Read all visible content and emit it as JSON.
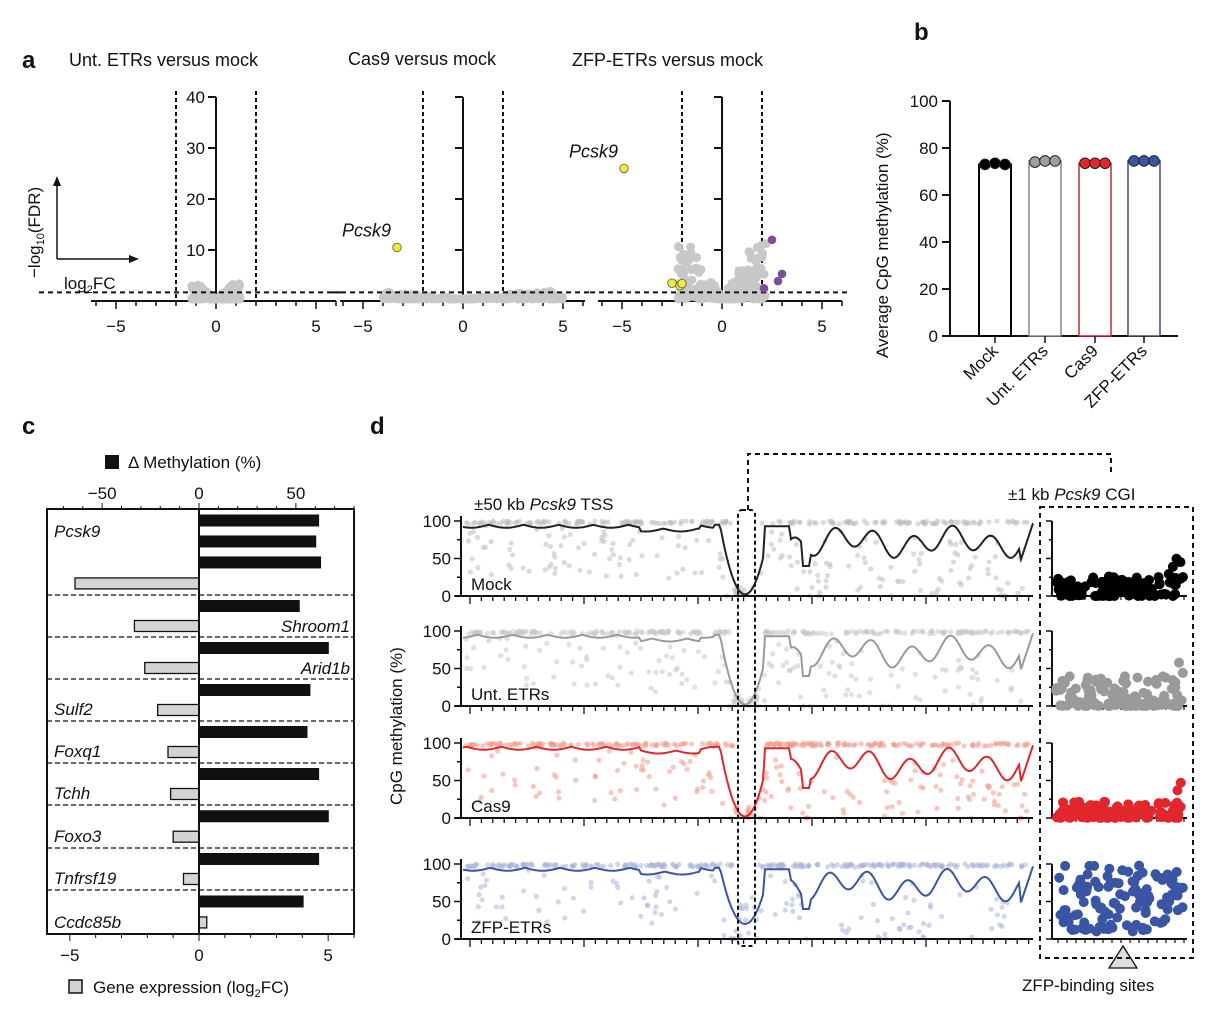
{
  "chart_data": [
    {
      "id": "a",
      "type": "scatter",
      "panel_label": "a",
      "ylabel": "−log10(FDR)",
      "xlabel": "log2FC",
      "ylim": [
        0,
        40
      ],
      "xlim": [
        -6,
        6
      ],
      "yticks": [
        "10",
        "20",
        "30",
        "40"
      ],
      "xticks": [
        "−5",
        "0",
        "5"
      ],
      "fc_threshold": 2,
      "fdr_threshold": 1.3,
      "colors": {
        "background": "#c8c8c8",
        "down": "#f2ea3a",
        "up": "#7b4f9c"
      },
      "subplots": [
        {
          "title": "Unt. ETRs versus mock",
          "highlighted": [],
          "background_spread": {
            "x": [
              -1.2,
              1.2
            ],
            "ymax": 3
          }
        },
        {
          "title": "Cas9 versus mock",
          "highlighted": [
            {
              "label": "Pcsk9",
              "x": -3.3,
              "y": 10.5,
              "group": "down"
            }
          ],
          "background_spread": {
            "x": [
              -4,
              5
            ],
            "ymax": 1.5
          }
        },
        {
          "title": "ZFP-ETRs versus mock",
          "highlighted": [
            {
              "label": "Pcsk9",
              "x": -4.9,
              "y": 26,
              "group": "down"
            },
            {
              "label": "",
              "x": -2.5,
              "y": 3.5,
              "group": "down"
            },
            {
              "label": "",
              "x": -2.1,
              "y": 3,
              "group": "down"
            },
            {
              "label": "",
              "x": -2.0,
              "y": 3.4,
              "group": "down"
            },
            {
              "label": "",
              "x": 2.5,
              "y": 12,
              "group": "up"
            },
            {
              "label": "",
              "x": 3.0,
              "y": 5.3,
              "group": "up"
            },
            {
              "label": "",
              "x": 2.8,
              "y": 3.9,
              "group": "up"
            },
            {
              "label": "",
              "x": 2.1,
              "y": 2.5,
              "group": "up"
            }
          ],
          "background_spread": {
            "x": [
              -2.2,
              2.2
            ],
            "ymax": 11
          }
        }
      ]
    },
    {
      "id": "b",
      "type": "bar",
      "panel_label": "b",
      "ylabel": "Average CpG methylation (%)",
      "ylim": [
        0,
        100
      ],
      "yticks": [
        "0",
        "20",
        "40",
        "60",
        "80",
        "100"
      ],
      "categories": [
        "Mock",
        "Unt. ETRs",
        "Cas9",
        "ZFP-ETRs"
      ],
      "values": [
        73,
        74.5,
        73.5,
        74.5
      ],
      "replicates": [
        [
          73,
          73.5,
          73
        ],
        [
          74,
          74.5,
          74.5
        ],
        [
          73.5,
          73.5,
          73.5
        ],
        [
          74.5,
          74.5,
          74.5
        ]
      ],
      "colors": [
        "#000000",
        "#a0a0a0",
        "#e3262b",
        "#3a55a4"
      ],
      "bar_edge_colors": [
        "#000000",
        "#888888",
        "#c0283a",
        "#3f4f6e"
      ]
    },
    {
      "id": "c",
      "type": "bar",
      "panel_label": "c",
      "orientation": "horizontal",
      "top_axis_label": "Δ Methylation (%)",
      "top_axis_ticks": [
        "−50",
        "0",
        "50"
      ],
      "top_axis_range": [
        -80,
        80
      ],
      "bottom_axis_label": "Gene expression (log2FC)",
      "bottom_axis_ticks": [
        "−5",
        "0",
        "5"
      ],
      "bottom_axis_range": [
        -6,
        6
      ],
      "legend": [
        {
          "label": "Δ Methylation (%)",
          "color": "#000000"
        },
        {
          "label": "Gene expression (log2FC)",
          "color": "#d4d4d4"
        }
      ],
      "genes": [
        {
          "name": "Pcsk9",
          "methylation": [
            62,
            60.5,
            63
          ],
          "expression": -4.8
        },
        {
          "name": "Shroom1",
          "methylation": [
            52
          ],
          "expression": -2.5
        },
        {
          "name": "Arid1b",
          "methylation": [
            67
          ],
          "expression": -2.1
        },
        {
          "name": "Sulf2",
          "methylation": [
            57.5
          ],
          "expression": -1.6
        },
        {
          "name": "Foxq1",
          "methylation": [
            56
          ],
          "expression": -1.2
        },
        {
          "name": "Tchh",
          "methylation": [
            62
          ],
          "expression": -1.1
        },
        {
          "name": "Foxo3",
          "methylation": [
            67
          ],
          "expression": -1.0
        },
        {
          "name": "Tnfrsf19",
          "methylation": [
            62
          ],
          "expression": -0.6
        },
        {
          "name": "Ccdc85b",
          "methylation": [
            54
          ],
          "expression": 0.3
        }
      ]
    },
    {
      "id": "d",
      "type": "line",
      "panel_label": "d",
      "ylabel": "CpG methylation (%)",
      "ylim": [
        0,
        100
      ],
      "yticks": [
        "0",
        "50",
        "100"
      ],
      "region_label_left": "±50 kb ",
      "region_label_left_gene": "Pcsk9",
      "region_label_left_suffix": " TSS",
      "region_label_right": "±1 kb ",
      "region_label_right_gene": "Pcsk9",
      "region_label_right_suffix": " CGI",
      "binding_site_label": "ZFP-binding sites",
      "tracks": [
        {
          "name": "Mock",
          "color": "#222222",
          "dot_color": "#bdbdbd",
          "cgi_color": "#000000",
          "cgi_level": 12
        },
        {
          "name": "Unt. ETRs",
          "color": "#9a9a9a",
          "dot_color": "#c6c6c6",
          "cgi_color": "#9a9a9a",
          "cgi_level": 18
        },
        {
          "name": "Cas9",
          "color": "#e3262b",
          "dot_color": "#f19a8a",
          "cgi_color": "#e3262b",
          "cgi_level": 10
        },
        {
          "name": "ZFP-ETRs",
          "color": "#3a55a4",
          "dot_color": "#a9b4db",
          "cgi_color": "#3a55a4",
          "cgi_level": 50
        }
      ]
    }
  ]
}
